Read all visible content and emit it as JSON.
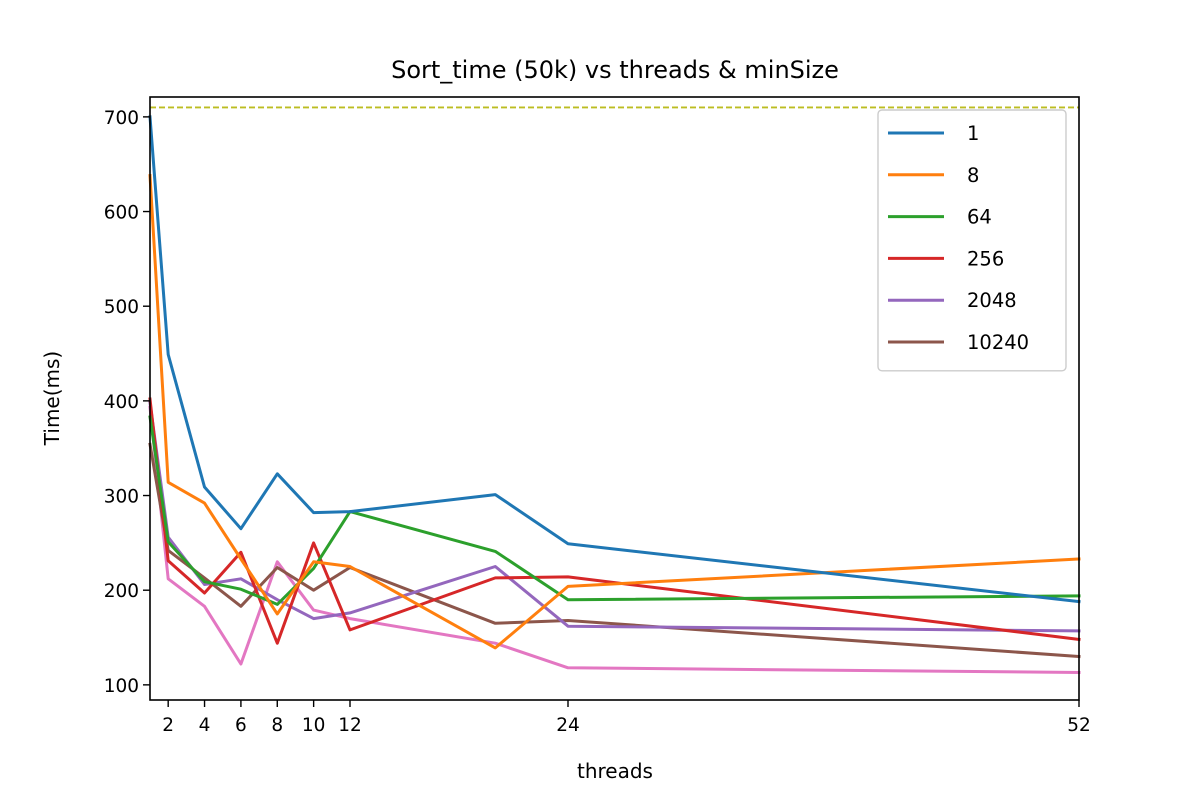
{
  "chart_data": {
    "type": "line",
    "title": "Sort_time (50k) vs threads & minSize",
    "xlabel": "threads",
    "ylabel": "Time(ms)",
    "xlim": [
      1,
      52
    ],
    "ylim": [
      84,
      721
    ],
    "x_scale": "piecewise",
    "x_ticks": [
      {
        "value": 2,
        "label": "2"
      },
      {
        "value": 4,
        "label": "4"
      },
      {
        "value": 6,
        "label": "6"
      },
      {
        "value": 8,
        "label": "8"
      },
      {
        "value": 10,
        "label": "10"
      },
      {
        "value": 12,
        "label": "12"
      },
      {
        "value": 24,
        "label": "24"
      },
      {
        "value": 52,
        "label": "52"
      }
    ],
    "y_ticks": [
      {
        "value": 100,
        "label": "100"
      },
      {
        "value": 200,
        "label": "200"
      },
      {
        "value": 300,
        "label": "300"
      },
      {
        "value": 400,
        "label": "400"
      },
      {
        "value": 500,
        "label": "500"
      },
      {
        "value": 600,
        "label": "600"
      },
      {
        "value": 700,
        "label": "700"
      }
    ],
    "grid": false,
    "legend_position": "top-right",
    "baseline": {
      "value": 710,
      "color": "#bcbd22",
      "style": "dashed"
    },
    "x": [
      1,
      2,
      4,
      6,
      8,
      10,
      12,
      20,
      24,
      52
    ],
    "series": [
      {
        "name": "1",
        "color": "#1f77b4",
        "in_legend": true,
        "values": [
          700,
          449,
          309,
          265,
          323,
          282,
          283,
          301,
          249,
          188
        ]
      },
      {
        "name": "8",
        "color": "#ff7f0e",
        "in_legend": true,
        "values": [
          638,
          314,
          292,
          233,
          175,
          230,
          225,
          139,
          204,
          233
        ]
      },
      {
        "name": "64",
        "color": "#2ca02c",
        "in_legend": true,
        "values": [
          383,
          251,
          209,
          201,
          185,
          223,
          283,
          241,
          190,
          194
        ]
      },
      {
        "name": "256",
        "color": "#d62728",
        "in_legend": true,
        "values": [
          402,
          231,
          197,
          240,
          144,
          250,
          158,
          213,
          214,
          148
        ]
      },
      {
        "name": "2048",
        "color": "#9467bd",
        "in_legend": true,
        "values": [
          398,
          256,
          206,
          212,
          190,
          170,
          176,
          225,
          162,
          157
        ]
      },
      {
        "name": "10240",
        "color": "#8c564b",
        "in_legend": true,
        "values": [
          354,
          242,
          213,
          183,
          224,
          200,
          224,
          165,
          168,
          130
        ]
      },
      {
        "name": "",
        "color": "#e377c2",
        "in_legend": false,
        "values": [
          393,
          212,
          183,
          122,
          230,
          179,
          170,
          144,
          118,
          113
        ]
      }
    ]
  }
}
